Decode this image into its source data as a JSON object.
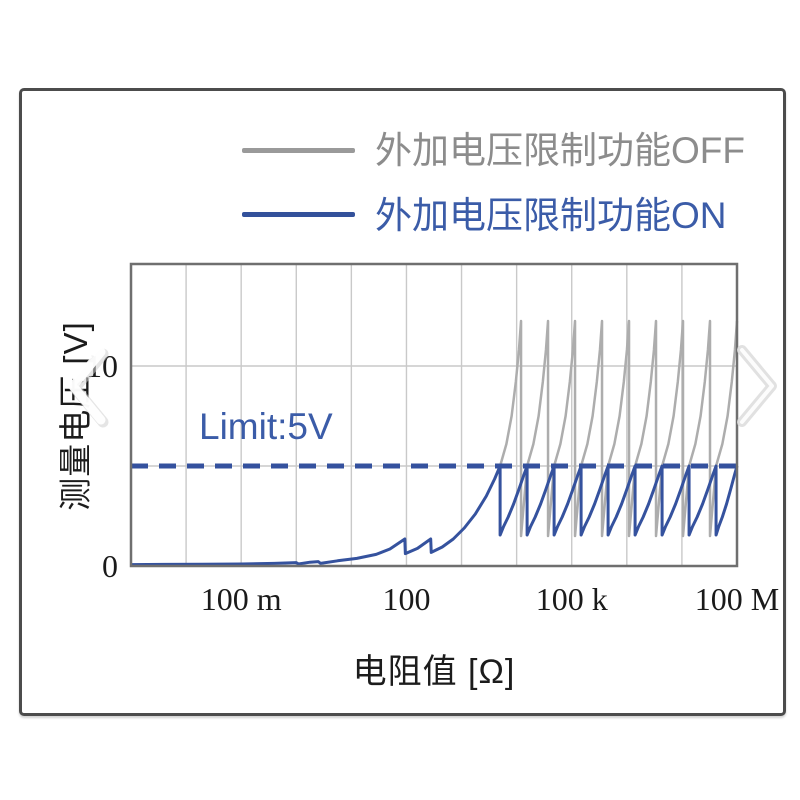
{
  "legend": {
    "items": [
      {
        "label": "外加电压限制功能OFF",
        "line_color": "#9a9a9a",
        "text_color": "#8c8c8c"
      },
      {
        "label": "外加电压限制功能ON",
        "line_color": "#33519b",
        "text_color": "#3b5ca8"
      }
    ]
  },
  "icons": {
    "previous": "carousel-previous-chevron",
    "next": "carousel-next-chevron"
  },
  "chart_data": {
    "type": "line",
    "title": "",
    "xlabel": "电阻值 [Ω]",
    "ylabel": "测量电压 [V]",
    "x_scale": "log10_ohms",
    "x_range_log10": [
      -3,
      8
    ],
    "x_gridline_every_decade": 1,
    "x_ticks": [
      {
        "log10": -1,
        "label": "100 m"
      },
      {
        "log10": 2,
        "label": "100"
      },
      {
        "log10": 5,
        "label": "100 k"
      },
      {
        "log10": 8,
        "label": "100 M"
      }
    ],
    "y_unit": "V",
    "ylim": [
      0,
      15.1
    ],
    "y_gridlines_v": [
      5,
      10
    ],
    "y_ticks": [
      {
        "v": 0,
        "label": "0"
      },
      {
        "v": 10,
        "label": "10"
      }
    ],
    "grid_color": "#c9c9c9",
    "plot_border_color": "#6f6f6f",
    "limit": {
      "v": 5,
      "label": "Limit:5V",
      "color": "#34519e",
      "dash": [
        17,
        11
      ],
      "thickness": 5
    },
    "series": [
      {
        "name": "外加电压限制功能OFF",
        "color": "#adadad",
        "width": 2.5,
        "teeth": {
          "starts": [
            3.7,
            4.19,
            4.68,
            5.17,
            5.66,
            6.15,
            6.64,
            7.13,
            7.62
          ],
          "width_decades": 0.38,
          "start_v": 5.0,
          "peak_v": 12.25,
          "drop_v": 1.5,
          "rise": [
            [
              0.3,
              6.1
            ],
            [
              0.55,
              7.5
            ],
            [
              0.75,
              9.2
            ],
            [
              0.9,
              10.8
            ]
          ]
        }
      },
      {
        "name": "外加电压限制功能ON",
        "color": "#35529e",
        "width": 3,
        "base": [
          [
            -3.0,
            0.07
          ],
          [
            -2.4,
            0.08
          ],
          [
            -1.7,
            0.09
          ],
          [
            -1.0,
            0.1
          ],
          [
            -0.4,
            0.13
          ],
          [
            0.0,
            0.17
          ],
          [
            0.04,
            0.1
          ],
          [
            0.25,
            0.19
          ],
          [
            0.4,
            0.22
          ],
          [
            0.44,
            0.13
          ],
          [
            0.75,
            0.26
          ],
          [
            1.1,
            0.38
          ],
          [
            1.45,
            0.58
          ],
          [
            1.7,
            0.85
          ],
          [
            1.97,
            1.35
          ],
          [
            1.98,
            0.62
          ],
          [
            2.2,
            0.88
          ],
          [
            2.44,
            1.35
          ],
          [
            2.45,
            0.68
          ],
          [
            2.65,
            0.95
          ],
          [
            2.85,
            1.35
          ],
          [
            3.05,
            1.9
          ],
          [
            3.25,
            2.6
          ],
          [
            3.45,
            3.5
          ],
          [
            3.6,
            4.35
          ],
          [
            3.7,
            5.0
          ]
        ],
        "teeth": {
          "peaks": [
            3.7,
            4.19,
            4.68,
            5.17,
            5.66,
            6.15,
            6.64,
            7.13,
            7.62,
            8.0
          ],
          "trough_v": 1.55,
          "peak_v": 5.0,
          "rise": [
            [
              0.12,
              1.95
            ],
            [
              0.3,
              2.45
            ],
            [
              0.5,
              3.1
            ],
            [
              0.7,
              3.85
            ],
            [
              0.88,
              4.55
            ]
          ]
        }
      }
    ],
    "legend_position": "top"
  }
}
